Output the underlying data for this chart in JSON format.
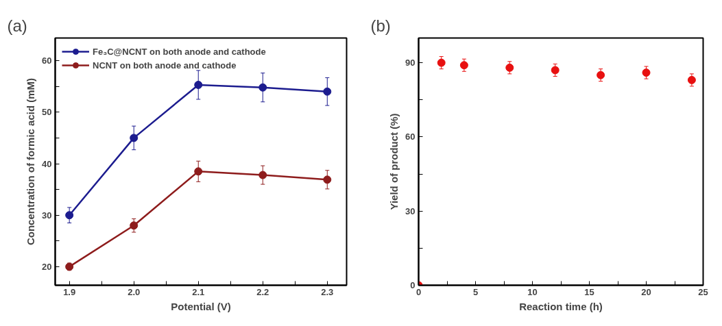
{
  "chart_data": [
    {
      "type": "line",
      "title": "(a)",
      "xlabel": "Potential (V)",
      "ylabel": "Concentration of formic acid (mM)",
      "x": [
        1.9,
        2.0,
        2.1,
        2.2,
        2.3
      ],
      "series": [
        {
          "name": "Fe₃C@NCNT on both anode and cathode",
          "color": "#1c1c8f",
          "values": [
            30,
            45,
            55.3,
            54.8,
            54
          ],
          "errors": [
            1.5,
            2.3,
            2.8,
            2.8,
            2.7
          ]
        },
        {
          "name": "NCNT on both anode and cathode",
          "color": "#8e1c1c",
          "values": [
            20,
            28,
            38.5,
            37.8,
            36.9
          ],
          "errors": [
            0.7,
            1.3,
            2.0,
            1.8,
            1.8
          ]
        }
      ],
      "xlim": [
        1.878,
        2.33
      ],
      "xticks": [
        1.9,
        {
          "value": 1.95,
          "label": null
        },
        {
          "value": 2.0,
          "label": "2.0"
        },
        {
          "value": 2.05,
          "label": null
        },
        2.1,
        {
          "value": 2.15,
          "label": null
        },
        2.2,
        {
          "value": 2.25,
          "label": null
        },
        2.3
      ],
      "ylim": [
        16.4,
        64.4
      ],
      "yticks": [
        20,
        {
          "value": 25,
          "label": null
        },
        30,
        {
          "value": 35,
          "label": null
        },
        40,
        {
          "value": 45,
          "label": null
        },
        50,
        {
          "value": 55,
          "label": null
        },
        60
      ],
      "grid": false,
      "legend": "top left",
      "marker": "circle",
      "line_style": "solid"
    },
    {
      "type": "scatter",
      "title": "(b)",
      "xlabel": "Reaction time (h)",
      "ylabel": "Yield of product (%)",
      "x": [
        0,
        2,
        4,
        8,
        12,
        16,
        20,
        24
      ],
      "series": [
        {
          "color": "#e81010",
          "values": [
            0,
            90,
            89,
            88,
            87,
            85,
            86,
            83
          ],
          "errors": [
            null,
            2.5,
            2.5,
            2.5,
            2.5,
            2.5,
            2.5,
            2.5
          ]
        }
      ],
      "xlim": [
        0,
        25
      ],
      "xticks": [
        0,
        {
          "value": 2.5,
          "label": null
        },
        5,
        {
          "value": 7.5,
          "label": null
        },
        10,
        {
          "value": 12.5,
          "label": null
        },
        15,
        {
          "value": 17.5,
          "label": null
        },
        20,
        {
          "value": 22.5,
          "label": null
        },
        25
      ],
      "ylim": [
        0,
        100
      ],
      "yticks": [
        0,
        {
          "value": 15,
          "label": null
        },
        30,
        {
          "value": 45,
          "label": null
        },
        60,
        {
          "value": 75,
          "label": null
        },
        90
      ],
      "grid": false,
      "legend": false,
      "marker": "circle"
    }
  ]
}
